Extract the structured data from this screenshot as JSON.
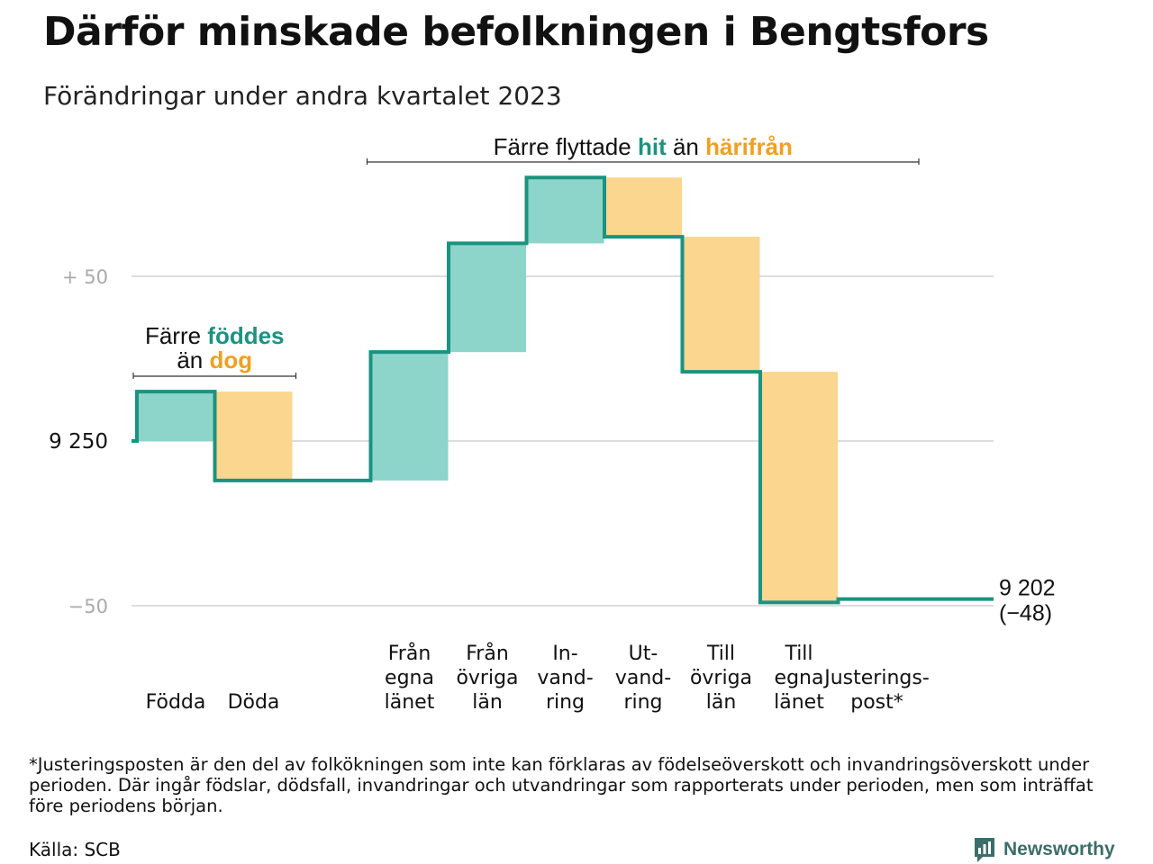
{
  "title": "Därför minskade befolkningen i Bengtsfors",
  "subtitle": "Förändringar under andra kvartalet 2023",
  "colors": {
    "accent": "#1a9380",
    "positive_fill": "#8dd4cb",
    "negative_fill": "#fad68e",
    "negative_text": "#f0a020",
    "grid": "#dddddd",
    "tick": "#aaaaaa"
  },
  "chart_data": {
    "type": "waterfall",
    "start_value": 9250,
    "categories": [
      {
        "label": [
          "Födda"
        ],
        "value": 15
      },
      {
        "label": [
          "Döda"
        ],
        "value": -27
      },
      {
        "label": [],
        "value": 0
      },
      {
        "label": [
          "Från",
          "egna",
          "länet"
        ],
        "value": 39
      },
      {
        "label": [
          "Från",
          "övriga",
          "län"
        ],
        "value": 33
      },
      {
        "label": [
          "In-",
          "vand-",
          "ring"
        ],
        "value": 20
      },
      {
        "label": [
          "Ut-",
          "vand-",
          "ring"
        ],
        "value": -18
      },
      {
        "label": [
          "Till",
          "övriga",
          "län"
        ],
        "value": -41
      },
      {
        "label": [
          "Till",
          "egna",
          "länet"
        ],
        "value": -70
      },
      {
        "label": [
          "Justerings-",
          "post*"
        ],
        "value": 1
      }
    ],
    "end_value": 9202,
    "end_label": "9 202",
    "end_change_label": "(−48)",
    "ylim": [
      -50,
      50
    ],
    "y_ticks": [
      {
        "value": 50,
        "label": "+  50",
        "muted": true
      },
      {
        "value": 0,
        "label": "9  250",
        "muted": false
      },
      {
        "value": -50,
        "label": "−50",
        "muted": true
      }
    ],
    "annotations": [
      {
        "from": 0,
        "to": 1,
        "lines": [
          [
            {
              "text": "Färre ",
              "tone": "plain"
            },
            {
              "text": "föddes",
              "tone": "positive"
            }
          ],
          [
            {
              "text": "än ",
              "tone": "plain"
            },
            {
              "text": "dog",
              "tone": "negative"
            }
          ]
        ]
      },
      {
        "from": 3,
        "to": 8,
        "lines": [
          [
            {
              "text": "Färre flyttade ",
              "tone": "plain"
            },
            {
              "text": "hit",
              "tone": "positive"
            },
            {
              "text": "  än ",
              "tone": "plain"
            },
            {
              "text": "härifrån",
              "tone": "negative"
            }
          ]
        ]
      }
    ]
  },
  "footnote": "*Justeringsposten är den del av folkökningen som inte kan förklaras av födelseöverskott och invandringsöverskott under perioden. Där ingår födslar, dödsfall, invandringar och utvandringar som rapporterats under perioden, men som inträffat före periodens början.",
  "source": "Källa: SCB",
  "brand": {
    "name": "Newsworthy",
    "icon": "newsworthy-logo-icon"
  }
}
